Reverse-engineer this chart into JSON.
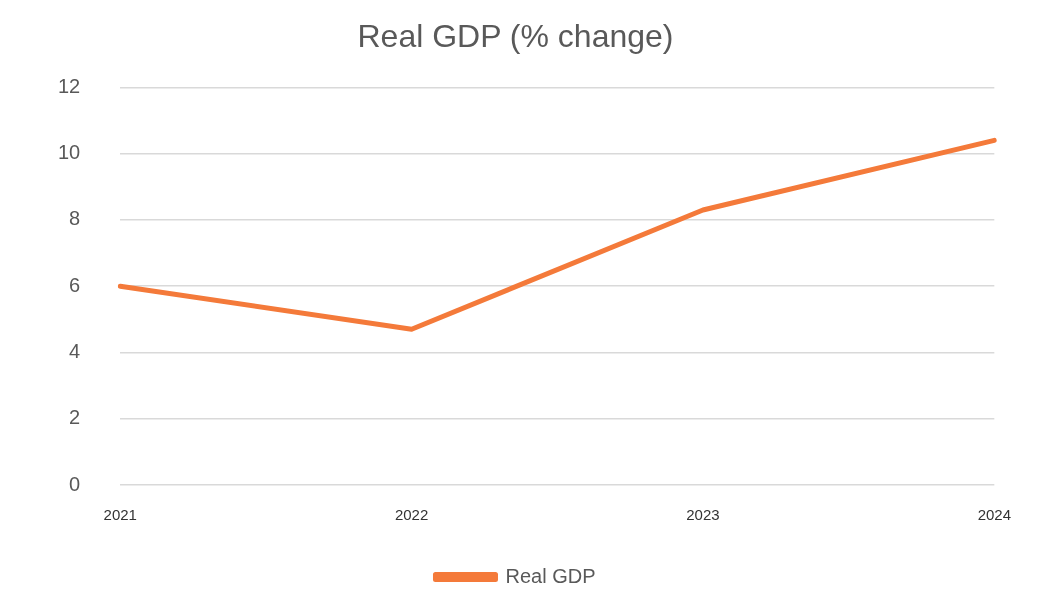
{
  "chart_data": {
    "type": "line",
    "title": "Real GDP (% change)",
    "categories": [
      "2021",
      "2022",
      "2023",
      "2024"
    ],
    "series": [
      {
        "name": "Real GDP",
        "color": "#f47a3a",
        "values": [
          6.0,
          4.7,
          8.3,
          10.4
        ]
      }
    ],
    "ylim": [
      0,
      12
    ],
    "yticks": [
      0,
      2,
      4,
      6,
      8,
      10,
      12
    ],
    "grid": "y",
    "legend": "bottom",
    "marker": "none",
    "line_style": "solid"
  }
}
